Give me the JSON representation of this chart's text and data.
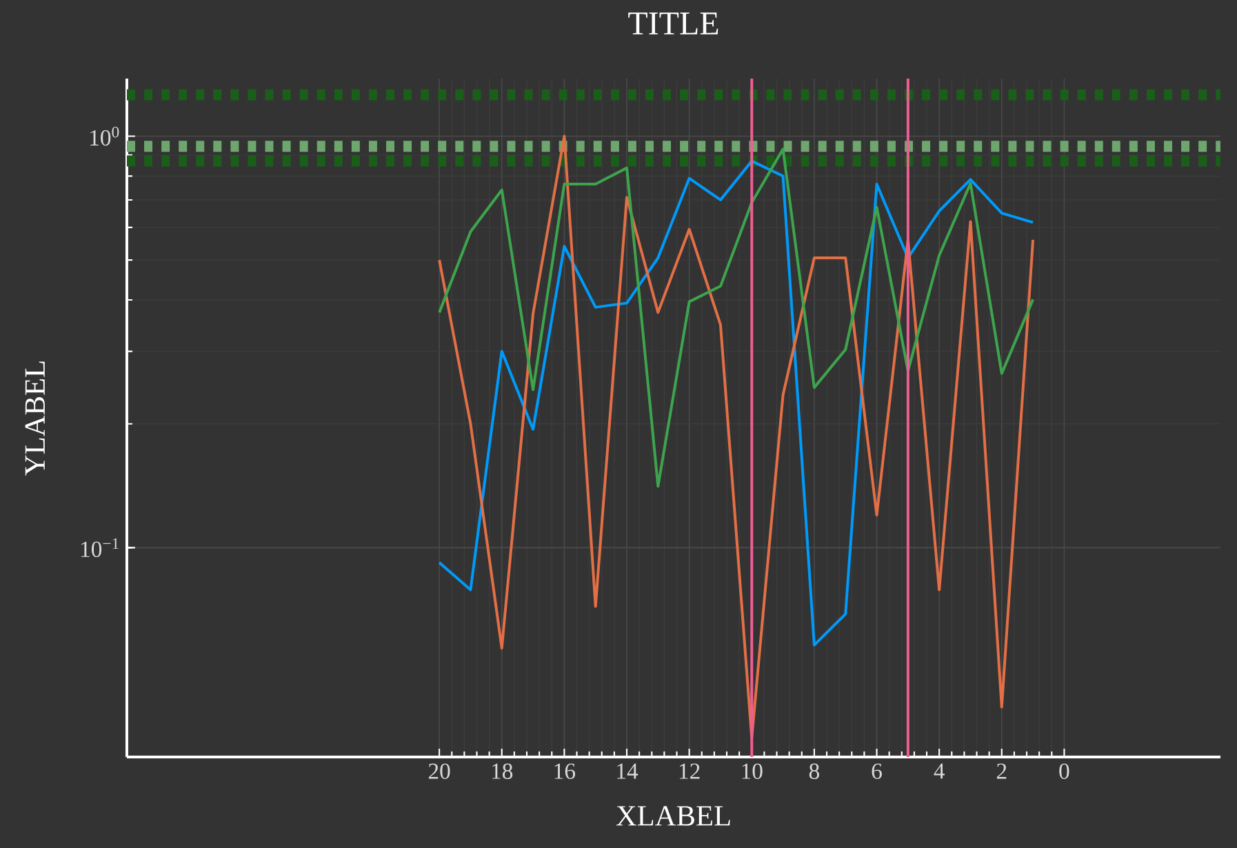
{
  "chart_data": {
    "type": "line",
    "title": "TITLE",
    "xlabel": "XLABEL",
    "ylabel": "YLABEL",
    "x": [
      20,
      19,
      18,
      17,
      16,
      15,
      14,
      13,
      12,
      11,
      10,
      9,
      8,
      7,
      6,
      5,
      4,
      3,
      2,
      1
    ],
    "series": [
      {
        "color": "#009af9",
        "values": [
          0.092,
          0.079,
          0.3,
          0.194,
          0.54,
          0.384,
          0.393,
          0.506,
          0.79,
          0.7,
          0.87,
          0.8,
          0.058,
          0.069,
          0.765,
          0.506,
          0.658,
          0.785,
          0.65,
          0.617
        ]
      },
      {
        "color": "#e26f46",
        "values": [
          0.5,
          0.2,
          0.057,
          0.37,
          1.0,
          0.072,
          0.71,
          0.373,
          0.594,
          0.348,
          0.0345,
          0.235,
          0.506,
          0.506,
          0.12,
          0.56,
          0.079,
          0.62,
          0.041,
          0.56
        ]
      },
      {
        "color": "#3da44d",
        "values": [
          0.373,
          0.586,
          0.74,
          0.242,
          0.765,
          0.765,
          0.837,
          0.141,
          0.396,
          0.432,
          0.69,
          0.93,
          0.245,
          0.303,
          0.672,
          0.269,
          0.513,
          0.768,
          0.265,
          0.401
        ]
      }
    ],
    "xlim": [
      30,
      -5
    ],
    "xticks": [
      20,
      18,
      16,
      14,
      12,
      10,
      8,
      6,
      4,
      2,
      0
    ],
    "ylim": [
      0.031,
      1.38
    ],
    "yticks": [
      {
        "value": 0.1,
        "label": "10$^{−1}$"
      },
      {
        "value": 1,
        "label": "10$^{0}$"
      }
    ],
    "log": "y",
    "grid": true,
    "ref_lines": [
      {
        "axis": "y",
        "value": 1.26,
        "color": "#1a5e1a",
        "line_style": "dashed"
      },
      {
        "axis": "y",
        "value": 0.945,
        "color": "#6ea66e",
        "line_style": "dashed"
      },
      {
        "axis": "y",
        "value": 0.87,
        "color": "#1a5e1a",
        "line_style": "dashed"
      },
      {
        "axis": "x",
        "value": 10,
        "color": "#ed5e93",
        "line_style": "solid"
      },
      {
        "axis": "x",
        "value": 5,
        "color": "#ed5e93",
        "line_style": "solid"
      }
    ]
  }
}
